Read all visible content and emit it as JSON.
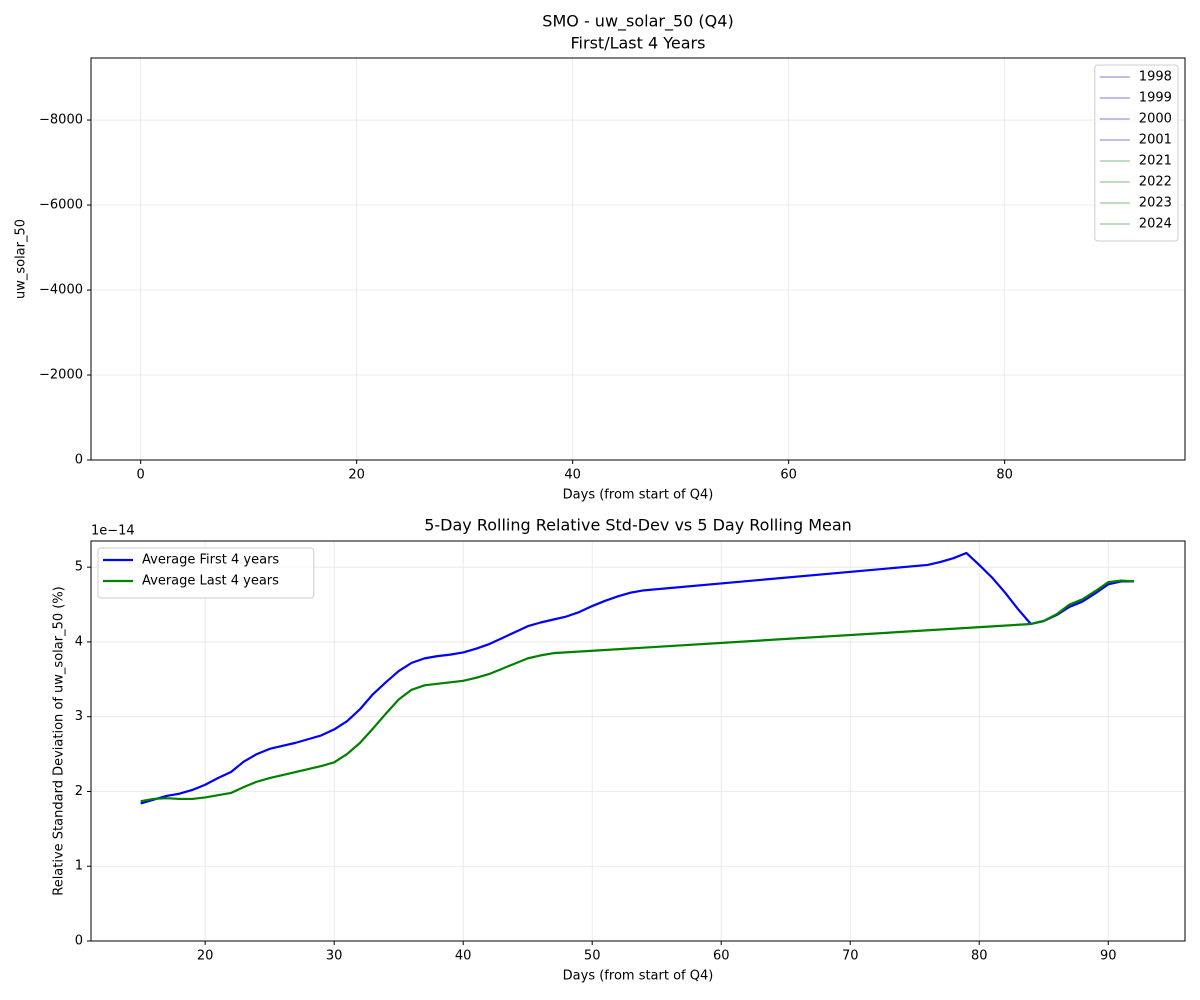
{
  "chart_data": [
    {
      "type": "line",
      "title": "SMO - uw_solar_50 (Q4)",
      "subtitle": "First/Last 4 Years",
      "x_label": "Days (from start of Q4)",
      "y_label": "uw_solar_50",
      "xlim": [
        -4.6,
        96.7
      ],
      "xticks": [
        0,
        20,
        40,
        60,
        80
      ],
      "ylim": [
        0,
        -9460
      ],
      "yticks": [
        0,
        {
          "value": -2000,
          "label": "−2000"
        },
        {
          "value": -4000,
          "label": "−4000"
        },
        {
          "value": -6000,
          "label": "−6000"
        },
        {
          "value": -8000,
          "label": "−8000"
        }
      ],
      "grid": true,
      "legend": "upper right",
      "series": [
        {
          "name": "1998",
          "color": "#a8a8e0"
        },
        {
          "name": "1999",
          "color": "#a8a8e0"
        },
        {
          "name": "2000",
          "color": "#a8a8e0"
        },
        {
          "name": "2001",
          "color": "#a8a8e0"
        },
        {
          "name": "2021",
          "color": "#a8d4a8"
        },
        {
          "name": "2022",
          "color": "#a8d4a8"
        },
        {
          "name": "2023",
          "color": "#a8d4a8"
        },
        {
          "name": "2024",
          "color": "#a8d4a8"
        }
      ]
    },
    {
      "type": "line",
      "title": "5-Day Rolling Relative Std-Dev vs 5 Day Rolling Mean",
      "x_label": "Days (from start of Q4)",
      "y_label": "Relative Standard Deviation of uw_solar_50 (%)",
      "y_offset_label": "1e−14",
      "xlim": [
        11.15,
        95.95
      ],
      "xticks": [
        20,
        30,
        40,
        50,
        60,
        70,
        80,
        90
      ],
      "ylim": [
        0,
        5.35
      ],
      "yticks": [
        0,
        1,
        2,
        3,
        4,
        5
      ],
      "grid": true,
      "legend": "upper left",
      "series": [
        {
          "name": "Average First 4 years",
          "color": "#0000ff",
          "x": [
            15,
            16,
            17,
            18,
            19,
            20,
            21,
            22,
            23,
            24,
            25,
            26,
            27,
            28,
            29,
            30,
            31,
            32,
            33,
            34,
            35,
            36,
            37,
            38,
            39,
            40,
            41,
            42,
            43,
            44,
            45,
            46,
            47,
            48,
            49,
            50,
            51,
            52,
            53,
            54,
            76,
            77,
            78,
            79,
            80,
            81,
            82,
            83,
            84,
            85,
            86,
            87,
            88,
            89,
            90,
            91,
            92
          ],
          "values": [
            1.84,
            1.89,
            1.94,
            1.97,
            2.02,
            2.09,
            2.18,
            2.26,
            2.4,
            2.5,
            2.57,
            2.61,
            2.65,
            2.7,
            2.75,
            2.83,
            2.94,
            3.1,
            3.3,
            3.46,
            3.61,
            3.72,
            3.78,
            3.81,
            3.83,
            3.86,
            3.91,
            3.97,
            4.05,
            4.13,
            4.21,
            4.26,
            4.3,
            4.34,
            4.4,
            4.48,
            4.55,
            4.61,
            4.66,
            4.69,
            5.03,
            5.07,
            5.12,
            5.19,
            5.03,
            4.86,
            4.66,
            4.44,
            4.24,
            4.28,
            4.36,
            4.47,
            4.54,
            4.65,
            4.77,
            4.81,
            4.81
          ]
        },
        {
          "name": "Average Last 4 years",
          "color": "#008000",
          "x": [
            15,
            16,
            17,
            18,
            19,
            20,
            21,
            22,
            23,
            24,
            25,
            26,
            27,
            28,
            29,
            30,
            31,
            32,
            33,
            34,
            35,
            36,
            37,
            38,
            39,
            40,
            41,
            42,
            43,
            44,
            45,
            46,
            47,
            84,
            85,
            86,
            87,
            88,
            89,
            90,
            91,
            92
          ],
          "values": [
            1.87,
            1.9,
            1.91,
            1.9,
            1.9,
            1.92,
            1.95,
            1.98,
            2.06,
            2.13,
            2.18,
            2.22,
            2.26,
            2.3,
            2.34,
            2.39,
            2.5,
            2.65,
            2.84,
            3.04,
            3.23,
            3.36,
            3.42,
            3.44,
            3.46,
            3.48,
            3.52,
            3.57,
            3.64,
            3.71,
            3.78,
            3.82,
            3.85,
            4.24,
            4.28,
            4.37,
            4.5,
            4.57,
            4.68,
            4.8,
            4.82,
            4.81
          ]
        }
      ]
    }
  ]
}
